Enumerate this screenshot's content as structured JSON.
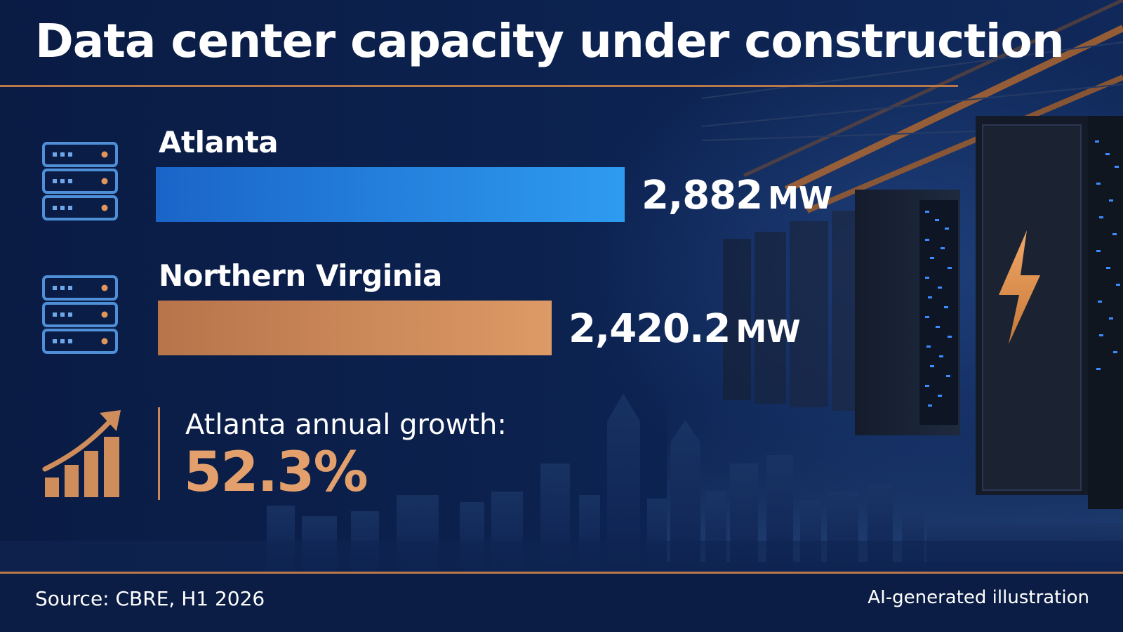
{
  "title": "Data center capacity under construction",
  "chart_data": {
    "type": "bar",
    "orientation": "horizontal",
    "categories": [
      "Atlanta",
      "Northern Virginia"
    ],
    "values": [
      2882,
      2420.2
    ],
    "value_labels": [
      "2,882",
      "2,420.2"
    ],
    "unit": "MW",
    "colors": [
      "#1e7fe0",
      "#d8935e"
    ]
  },
  "growth": {
    "label": "Atlanta annual growth:",
    "value": "52.3%"
  },
  "footer": {
    "source": "Source: CBRE, H1 2026",
    "note": "AI-generated illustration"
  },
  "colors": {
    "background": "#0b1f47",
    "accent_copper": "#b9794a",
    "atlanta_blue": "#1e7fe0",
    "nova_copper": "#d8935e",
    "growth_orange": "#e3a06c"
  },
  "icons": [
    "server-rack-icon",
    "growth-chart-icon",
    "lightning-bolt-icon"
  ]
}
